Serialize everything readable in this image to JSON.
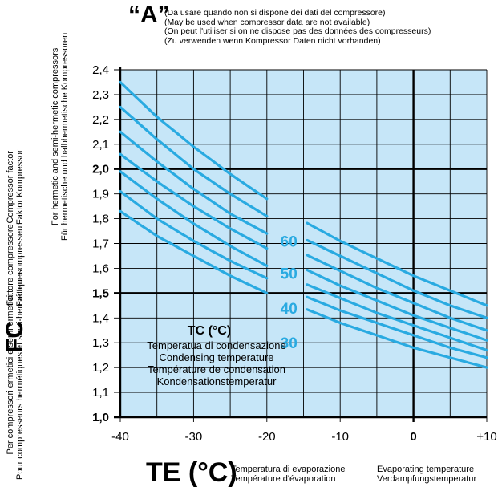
{
  "header": {
    "letter": "“A”",
    "notes": [
      "(Da usare quando non si dispone dei dati del compressore)",
      "(May be used when compressor data are not available)",
      "(On peut l'utiliser si on ne dispose pas des données des compresseurs)",
      "(Zu verwenden wenn Kompressor Daten nicht vorhanden)"
    ]
  },
  "side": {
    "fc_label": "FC",
    "col1": [
      "Per compressori ermetici e semi ermetici",
      "Pour compresseurs hermétiques et semi-hermétiques"
    ],
    "col2": [
      "Fattore compressore",
      "Facteur compresseur"
    ],
    "col3": [
      "For hermetic and semi-hermetic compressors",
      "Für hermetische und halbhermetische Kompressoren"
    ],
    "col4": [
      "Compressor factor",
      "Faktor Kompressor"
    ]
  },
  "bottom": {
    "te_label": "TE (°C)",
    "note_left": [
      "Temperatura di evaporazione",
      "Température d'évaporation"
    ],
    "note_right": [
      "Evaporating temperature",
      "Verdampfungstemperatur"
    ]
  },
  "legend": {
    "title": "TC (°C)",
    "lines": [
      "Temperatua di condensazione",
      "Condensing temperature",
      "Température de condensation",
      "Kondensationstemperatur"
    ]
  },
  "colors": {
    "plot_bg": "#c6e6f8",
    "curve": "#29aae1",
    "grid": "#000000"
  },
  "chart_data": {
    "type": "line",
    "xlabel": "TE (°C)",
    "ylabel": "FC",
    "xlim": [
      -40,
      10
    ],
    "ylim": [
      1.0,
      2.4
    ],
    "x_ticks": [
      -40,
      -30,
      -20,
      -10,
      0,
      10
    ],
    "x_tick_labels": [
      "-40",
      "-30",
      "-20",
      "-10",
      "0",
      "+10"
    ],
    "y_ticks": [
      1.0,
      1.1,
      1.2,
      1.3,
      1.4,
      1.5,
      1.6,
      1.7,
      1.8,
      1.9,
      2.0,
      2.1,
      2.2,
      2.3,
      2.4
    ],
    "y_tick_labels": [
      "1,0",
      "1,1",
      "1,2",
      "1,3",
      "1,4",
      "1,5",
      "1,6",
      "1,7",
      "1,8",
      "1,9",
      "2,0",
      "2,1",
      "2,2",
      "2,3",
      "2,4"
    ],
    "bold_y_ticks": [
      1.0,
      1.5,
      2.0
    ],
    "bold_x_ticks": [
      0
    ],
    "grid": true,
    "series": [
      {
        "name": "60",
        "x": [
          -40,
          -35,
          -30,
          -25,
          -20,
          -15,
          -10,
          -5,
          0,
          5,
          10
        ],
        "y": [
          2.35,
          2.21,
          2.09,
          1.98,
          1.88,
          1.79,
          1.71,
          1.64,
          1.57,
          1.51,
          1.45
        ]
      },
      {
        "name": "",
        "x": [
          -40,
          -35,
          -30,
          -25,
          -20,
          -15,
          -10,
          -5,
          0,
          5,
          10
        ],
        "y": [
          2.25,
          2.12,
          2.0,
          1.9,
          1.81,
          1.72,
          1.65,
          1.58,
          1.51,
          1.45,
          1.4
        ]
      },
      {
        "name": "50",
        "x": [
          -40,
          -35,
          -30,
          -25,
          -20,
          -15,
          -10,
          -5,
          0,
          5,
          10
        ],
        "y": [
          2.15,
          2.03,
          1.92,
          1.82,
          1.74,
          1.66,
          1.59,
          1.52,
          1.46,
          1.4,
          1.35
        ]
      },
      {
        "name": "",
        "x": [
          -40,
          -35,
          -30,
          -25,
          -20,
          -15,
          -10,
          -5,
          0,
          5,
          10
        ],
        "y": [
          2.06,
          1.95,
          1.85,
          1.76,
          1.68,
          1.6,
          1.53,
          1.47,
          1.41,
          1.36,
          1.31
        ]
      },
      {
        "name": "40",
        "x": [
          -40,
          -35,
          -30,
          -25,
          -20,
          -15,
          -10,
          -5,
          0,
          5,
          10
        ],
        "y": [
          1.99,
          1.88,
          1.78,
          1.69,
          1.61,
          1.54,
          1.48,
          1.42,
          1.37,
          1.32,
          1.27
        ]
      },
      {
        "name": "",
        "x": [
          -40,
          -35,
          -30,
          -25,
          -20,
          -15,
          -10,
          -5,
          0,
          5,
          10
        ],
        "y": [
          1.91,
          1.8,
          1.71,
          1.63,
          1.56,
          1.49,
          1.43,
          1.38,
          1.33,
          1.28,
          1.24
        ]
      },
      {
        "name": "30",
        "x": [
          -40,
          -35,
          -30,
          -25,
          -20,
          -15,
          -10,
          -5,
          0,
          5,
          10
        ],
        "y": [
          1.83,
          1.73,
          1.65,
          1.57,
          1.5,
          1.44,
          1.38,
          1.33,
          1.28,
          1.24,
          1.2
        ]
      }
    ],
    "curve_labels": [
      {
        "text": "60",
        "x": -17,
        "y": 1.71
      },
      {
        "text": "50",
        "x": -17,
        "y": 1.58
      },
      {
        "text": "40",
        "x": -17,
        "y": 1.44
      },
      {
        "text": "30",
        "x": -17,
        "y": 1.3
      }
    ]
  }
}
